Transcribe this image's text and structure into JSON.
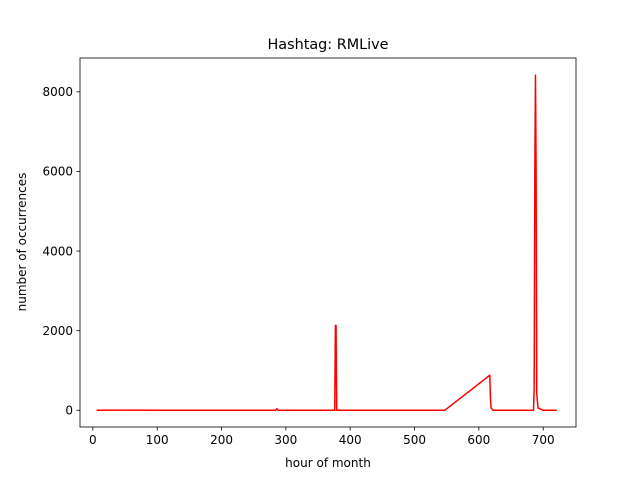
{
  "chart_data": {
    "type": "line",
    "title": "Hashtag: RMLive",
    "xlabel": "hour of month",
    "ylabel": "number of occurrences",
    "xlim": [
      -20,
      751
    ],
    "ylim": [
      -420,
      8850
    ],
    "xticks": [
      0,
      100,
      200,
      300,
      400,
      500,
      600,
      700
    ],
    "yticks": [
      0,
      2000,
      4000,
      6000,
      8000
    ],
    "grid": false,
    "legend": "none",
    "series": [
      {
        "color": "#ff0000",
        "points": [
          [
            7,
            0
          ],
          [
            50,
            3
          ],
          [
            100,
            0
          ],
          [
            200,
            0
          ],
          [
            284,
            0
          ],
          [
            286,
            40
          ],
          [
            288,
            0
          ],
          [
            376,
            0
          ],
          [
            377,
            2130
          ],
          [
            378,
            2130
          ],
          [
            379,
            0
          ],
          [
            380,
            0
          ],
          [
            382,
            0
          ],
          [
            450,
            0
          ],
          [
            547,
            0
          ],
          [
            617,
            880
          ],
          [
            618,
            300
          ],
          [
            619,
            60
          ],
          [
            622,
            0
          ],
          [
            685,
            0
          ],
          [
            686,
            600
          ],
          [
            687,
            6000
          ],
          [
            688,
            8420
          ],
          [
            689,
            6000
          ],
          [
            690,
            400
          ],
          [
            692,
            60
          ],
          [
            700,
            0
          ],
          [
            720,
            0
          ]
        ]
      }
    ]
  }
}
